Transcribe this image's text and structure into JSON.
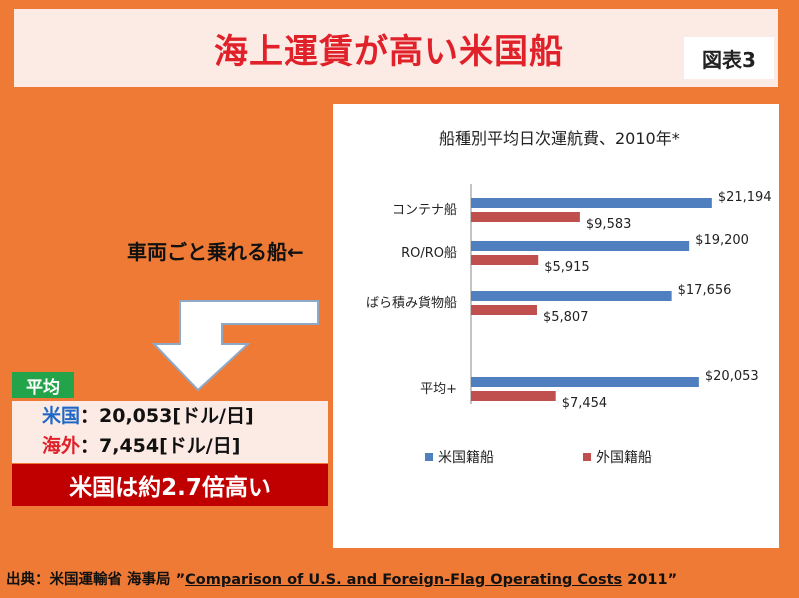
{
  "header": {
    "title": "海上運賃が高い米国船",
    "figure_label": "図表3"
  },
  "annotation": {
    "ro_ro_note": "車両ごと乗れる船←"
  },
  "summary": {
    "tag": "平均",
    "us_label": "米国",
    "us_value": "：20,053[ドル/日]",
    "foreign_label": "海外",
    "foreign_value": "：7,454[ドル/日]",
    "ratio_text": "米国は約2.7倍高い"
  },
  "source": {
    "prefix": "出典：米国運輸省 海事局 ”",
    "report_title": "Comparison of U.S. and Foreign-Flag Operating Costs",
    "suffix": " 2011”"
  },
  "colors": {
    "us_series": "#4F7FBF",
    "foreign_series": "#C0504D",
    "background": "#EE7A35",
    "title": "#E0212A"
  },
  "chart_data": {
    "type": "bar",
    "orientation": "horizontal",
    "title": "船種別平均日次運航費、2010年*",
    "categories": [
      "コンテナ船",
      "RO/RO船",
      "ばら積み貨物船",
      "平均+"
    ],
    "series": [
      {
        "name": "米国籍船",
        "values": [
          21194,
          19200,
          17656,
          20053
        ],
        "labels": [
          "$21,194",
          "$19,200",
          "$17,656",
          "$20,053"
        ]
      },
      {
        "name": "外国籍船",
        "values": [
          9583,
          5915,
          5807,
          7454
        ],
        "labels": [
          "$9,583",
          "$5,915",
          "$5,807",
          "$7,454"
        ]
      }
    ],
    "xlim": [
      0,
      22000
    ],
    "grid": false,
    "legend_position": "bottom"
  }
}
